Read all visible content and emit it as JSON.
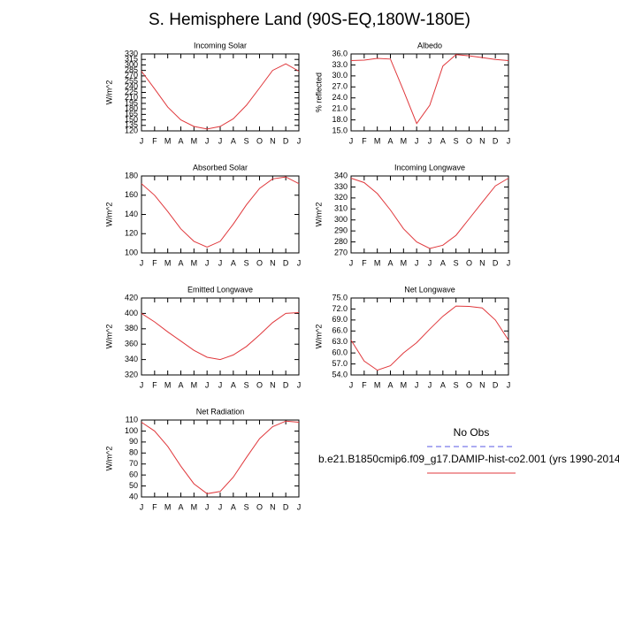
{
  "title": "S. Hemisphere Land (90S-EQ,180W-180E)",
  "legend": [
    {
      "name": "No Obs",
      "color": "#5a5ae6",
      "dash": true
    },
    {
      "name": "b.e21.B1850cmip6.f09_g17.DAMIP-hist-co2.001 (yrs 1990-2014",
      "color": "#e0383c"
    }
  ],
  "chart_data": [
    {
      "type": "line",
      "title": "Incoming Solar",
      "y_label": "W/m^2",
      "categories": [
        "J",
        "F",
        "M",
        "A",
        "M",
        "J",
        "J",
        "A",
        "S",
        "O",
        "N",
        "D",
        "J"
      ],
      "series": [
        {
          "color": "#e0383c",
          "values": [
            283,
            235,
            185,
            150,
            132,
            125,
            132,
            153,
            190,
            237,
            285,
            303,
            283
          ]
        }
      ],
      "ylim": [
        120,
        330
      ],
      "yticks": [
        120,
        135,
        150,
        165,
        180,
        195,
        210,
        225,
        240,
        255,
        270,
        285,
        300,
        315,
        330
      ]
    },
    {
      "type": "line",
      "title": "Albedo",
      "y_label": "% reflected",
      "categories": [
        "J",
        "F",
        "M",
        "A",
        "M",
        "J",
        "J",
        "A",
        "S",
        "O",
        "N",
        "D",
        "J"
      ],
      "series": [
        {
          "color": "#e0383c",
          "values": [
            34.2,
            34.3,
            34.8,
            34.6,
            26,
            17,
            22,
            32.7,
            35.8,
            35.5,
            35,
            34.5,
            34.2
          ]
        }
      ],
      "ylim": [
        15,
        36
      ],
      "yticks": [
        {
          "value": 15,
          "label": "15.0"
        },
        {
          "value": 18,
          "label": "18.0"
        },
        {
          "value": 21,
          "label": "21.0"
        },
        {
          "value": 24,
          "label": "24.0"
        },
        {
          "value": 27,
          "label": "27.0"
        },
        {
          "value": 30,
          "label": "30.0"
        },
        {
          "value": 33,
          "label": "33.0"
        },
        {
          "value": 36,
          "label": "36.0"
        }
      ]
    },
    {
      "type": "line",
      "title": "Absorbed Solar",
      "y_label": "W/m^2",
      "categories": [
        "J",
        "F",
        "M",
        "A",
        "M",
        "J",
        "J",
        "A",
        "S",
        "O",
        "N",
        "D",
        "J"
      ],
      "series": [
        {
          "color": "#e0383c",
          "values": [
            172,
            160,
            143,
            125,
            112,
            106,
            112,
            130,
            150,
            167,
            177,
            179,
            172
          ]
        }
      ],
      "ylim": [
        100,
        180
      ],
      "yticks": [
        100,
        120,
        140,
        160,
        180
      ]
    },
    {
      "type": "line",
      "title": "Incoming Longwave",
      "y_label": "W/m^2",
      "categories": [
        "J",
        "F",
        "M",
        "A",
        "M",
        "J",
        "J",
        "A",
        "S",
        "O",
        "N",
        "D",
        "J"
      ],
      "series": [
        {
          "color": "#e0383c",
          "values": [
            338,
            334,
            324,
            309,
            292,
            280,
            274,
            277,
            286,
            301,
            316,
            331,
            338
          ]
        }
      ],
      "ylim": [
        270,
        340
      ],
      "yticks": [
        270,
        280,
        290,
        300,
        310,
        320,
        330,
        340
      ]
    },
    {
      "type": "line",
      "title": "Emitted Longwave",
      "y_label": "W/m^2",
      "categories": [
        "J",
        "F",
        "M",
        "A",
        "M",
        "J",
        "J",
        "A",
        "S",
        "O",
        "N",
        "D",
        "J"
      ],
      "series": [
        {
          "color": "#e0383c",
          "values": [
            400,
            389,
            376,
            364,
            352,
            343,
            340,
            346,
            357,
            372,
            388,
            400,
            401
          ]
        }
      ],
      "ylim": [
        320,
        420
      ],
      "yticks": [
        320,
        340,
        360,
        380,
        400,
        420
      ]
    },
    {
      "type": "line",
      "title": "Net Longwave",
      "y_label": "W/m^2",
      "categories": [
        "J",
        "F",
        "M",
        "A",
        "M",
        "J",
        "J",
        "A",
        "S",
        "O",
        "N",
        "D",
        "J"
      ],
      "series": [
        {
          "color": "#e0383c",
          "values": [
            63.5,
            57.8,
            55.3,
            56.5,
            60,
            62.8,
            66.5,
            70,
            72.8,
            72.7,
            72.3,
            69,
            63.5
          ]
        }
      ],
      "ylim": [
        54,
        75
      ],
      "yticks": [
        {
          "value": 54,
          "label": "54.0"
        },
        {
          "value": 57,
          "label": "57.0"
        },
        {
          "value": 60,
          "label": "60.0"
        },
        {
          "value": 63,
          "label": "63.0"
        },
        {
          "value": 66,
          "label": "66.0"
        },
        {
          "value": 69,
          "label": "69.0"
        },
        {
          "value": 72,
          "label": "72.0"
        },
        {
          "value": 75,
          "label": "75.0"
        }
      ]
    },
    {
      "type": "line",
      "title": "Net Radiation",
      "y_label": "W/m^2",
      "categories": [
        "J",
        "F",
        "M",
        "A",
        "M",
        "J",
        "J",
        "A",
        "S",
        "O",
        "N",
        "D",
        "J"
      ],
      "series": [
        {
          "color": "#e0383c",
          "values": [
            108,
            100,
            86,
            68,
            52,
            43,
            45,
            58,
            76,
            93,
            104,
            109,
            108
          ]
        }
      ],
      "ylim": [
        40,
        110
      ],
      "yticks": [
        40,
        50,
        60,
        70,
        80,
        90,
        100,
        110
      ]
    }
  ]
}
